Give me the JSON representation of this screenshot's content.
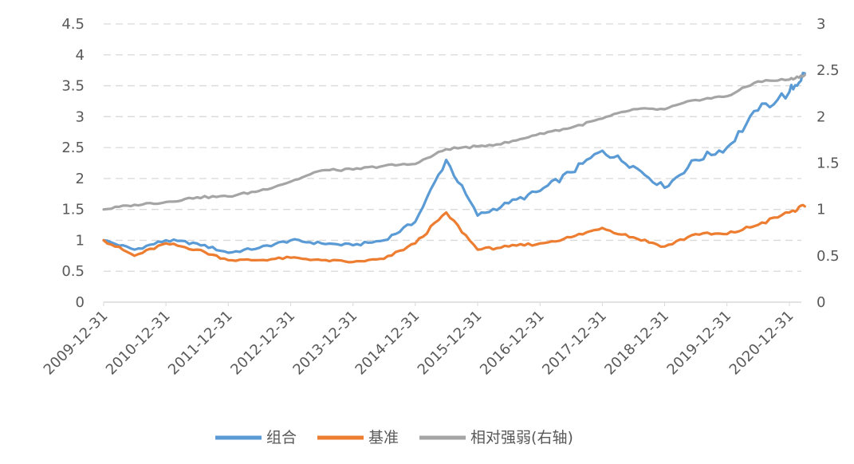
{
  "chart_data": {
    "type": "line",
    "title": "",
    "xlabel": "",
    "ylabel": "",
    "y2label": "",
    "x": [
      "2009-12-31",
      "2010-06-30",
      "2010-12-31",
      "2011-06-30",
      "2011-12-31",
      "2012-06-30",
      "2012-12-31",
      "2013-06-30",
      "2013-12-31",
      "2014-06-30",
      "2014-12-31",
      "2015-06-30",
      "2015-12-31",
      "2016-06-30",
      "2016-12-31",
      "2017-06-30",
      "2017-12-31",
      "2018-06-30",
      "2018-12-31",
      "2019-06-30",
      "2019-12-31",
      "2020-06-30",
      "2020-12-31",
      "2021-03-31"
    ],
    "xticks": [
      "2009-12-31",
      "2010-12-31",
      "2011-12-31",
      "2012-12-31",
      "2013-12-31",
      "2014-12-31",
      "2015-12-31",
      "2016-12-31",
      "2017-12-31",
      "2018-12-31",
      "2019-12-31",
      "2020-12-31"
    ],
    "ylim": [
      0,
      4.5
    ],
    "yticks": [
      "0",
      "0.5",
      "1",
      "1.5",
      "2",
      "2.5",
      "3",
      "3.5",
      "4",
      "4.5"
    ],
    "y2lim": [
      0,
      3
    ],
    "y2ticks": [
      "0",
      "0.5",
      "1",
      "1.5",
      "2",
      "2.5",
      "3"
    ],
    "grid": true,
    "legend_position": "bottom",
    "series": [
      {
        "name": "组合",
        "axis": "left",
        "color": "#5b9bd5",
        "values": [
          1.0,
          0.85,
          1.0,
          0.95,
          0.8,
          0.88,
          1.0,
          0.95,
          0.92,
          1.0,
          1.3,
          2.3,
          1.4,
          1.6,
          1.8,
          2.1,
          2.45,
          2.2,
          1.85,
          2.3,
          2.5,
          3.1,
          3.4,
          3.7
        ]
      },
      {
        "name": "基准",
        "axis": "left",
        "color": "#ed7d31",
        "values": [
          1.0,
          0.75,
          0.95,
          0.85,
          0.68,
          0.68,
          0.72,
          0.68,
          0.65,
          0.7,
          0.95,
          1.45,
          0.85,
          0.9,
          0.95,
          1.05,
          1.2,
          1.05,
          0.9,
          1.1,
          1.1,
          1.25,
          1.45,
          1.55
        ]
      },
      {
        "name": "相对强弱(右轴)",
        "axis": "right",
        "color": "#a5a5a5",
        "values": [
          1.0,
          1.05,
          1.08,
          1.13,
          1.14,
          1.2,
          1.3,
          1.42,
          1.43,
          1.47,
          1.49,
          1.65,
          1.68,
          1.72,
          1.82,
          1.88,
          1.98,
          2.08,
          2.08,
          2.18,
          2.22,
          2.38,
          2.4,
          2.45
        ]
      }
    ]
  }
}
